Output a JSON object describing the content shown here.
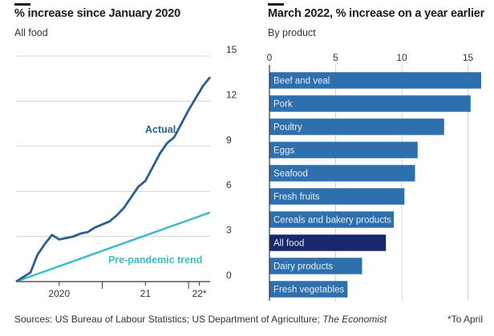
{
  "colors": {
    "actual": "#2b5f8f",
    "trend": "#3dbcc4",
    "bar": "#2e6fae",
    "bar_highlight": "#16286b",
    "grid": "#d3d3d3",
    "axis": "#333333"
  },
  "left": {
    "title": "% increase since January 2020",
    "subtitle": "All food"
  },
  "right": {
    "title": "March 2022, % increase on a year earlier",
    "subtitle": "By product"
  },
  "footer": {
    "sources": "Sources: US Bureau of Labour Statistics; US Department of Agriculture;",
    "publication": "The Economist",
    "note": "*To April"
  },
  "chart_data": [
    {
      "type": "line",
      "title": "% increase since January 2020",
      "subtitle": "All food",
      "ylim": [
        0,
        15
      ],
      "yticks": [
        0,
        3,
        6,
        9,
        12,
        15
      ],
      "xlim": [
        0,
        27
      ],
      "xticks": [
        {
          "value": 6,
          "label": "2020"
        },
        {
          "value": 18,
          "label": "21"
        },
        {
          "value": 25.5,
          "label": "22*"
        }
      ],
      "series": [
        {
          "name": "Actual",
          "x": [
            0,
            1,
            2,
            3,
            4,
            5,
            6,
            7,
            8,
            9,
            10,
            11,
            12,
            13,
            14,
            15,
            16,
            17,
            18,
            19,
            20,
            21,
            22,
            23,
            24,
            25,
            26,
            27
          ],
          "values": [
            0,
            0.3,
            0.6,
            1.8,
            2.5,
            3.1,
            2.8,
            2.9,
            3.0,
            3.2,
            3.3,
            3.6,
            3.8,
            4.0,
            4.4,
            4.9,
            5.6,
            6.3,
            6.7,
            7.6,
            8.5,
            9.2,
            9.6,
            10.5,
            11.4,
            12.2,
            13.0,
            13.6
          ]
        },
        {
          "name": "Pre-pandemic trend",
          "x": [
            0,
            27
          ],
          "values": [
            0,
            4.6
          ]
        }
      ]
    },
    {
      "type": "bar",
      "orientation": "horizontal",
      "title": "March 2022, % increase on a year earlier",
      "subtitle": "By product",
      "xlim": [
        0,
        16
      ],
      "xticks": [
        0,
        5,
        10,
        15
      ],
      "categories": [
        "Beef and veal",
        "Pork",
        "Poultry",
        "Eggs",
        "Seafood",
        "Fresh fruits",
        "Cereals and bakery products",
        "All food",
        "Dairy products",
        "Fresh vegetables"
      ],
      "values": [
        16.0,
        15.2,
        13.2,
        11.2,
        11.0,
        10.2,
        9.4,
        8.8,
        7.0,
        5.9
      ],
      "highlight": "All food"
    }
  ]
}
